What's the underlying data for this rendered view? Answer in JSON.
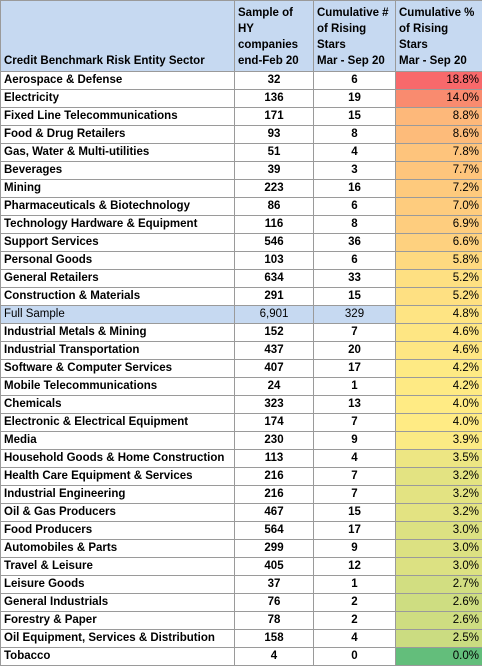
{
  "header": {
    "sector": "Credit Benchmark Risk Entity Sector",
    "sample_lines": [
      "Sample of HY",
      "companies",
      "end-Feb 20"
    ],
    "cum_num_lines": [
      "Cumulative #",
      "of Rising Stars",
      "Mar - Sep 20"
    ],
    "cum_pct_lines": [
      "Cumulative %",
      "of Rising Stars",
      "Mar - Sep 20"
    ]
  },
  "rows": [
    {
      "sector": "Aerospace & Defense",
      "sample": "32",
      "rising": "6",
      "pct": "18.8%",
      "color": "#f8696b"
    },
    {
      "sector": "Electricity",
      "sample": "136",
      "rising": "19",
      "pct": "14.0%",
      "color": "#f98b6f"
    },
    {
      "sector": "Fixed Line Telecommunications",
      "sample": "171",
      "rising": "15",
      "pct": "8.8%",
      "color": "#fdb87a"
    },
    {
      "sector": "Food & Drug Retailers",
      "sample": "93",
      "rising": "8",
      "pct": "8.6%",
      "color": "#fdbb7a"
    },
    {
      "sector": "Gas, Water & Multi-utilities",
      "sample": "51",
      "rising": "4",
      "pct": "7.8%",
      "color": "#fec47c"
    },
    {
      "sector": "Beverages",
      "sample": "39",
      "rising": "3",
      "pct": "7.7%",
      "color": "#fec57c"
    },
    {
      "sector": "Mining",
      "sample": "223",
      "rising": "16",
      "pct": "7.2%",
      "color": "#feca7d"
    },
    {
      "sector": "Pharmaceuticals & Biotechnology",
      "sample": "86",
      "rising": "6",
      "pct": "7.0%",
      "color": "#fecc7e"
    },
    {
      "sector": "Technology Hardware & Equipment",
      "sample": "116",
      "rising": "8",
      "pct": "6.9%",
      "color": "#fecd7e"
    },
    {
      "sector": "Support Services",
      "sample": "546",
      "rising": "36",
      "pct": "6.6%",
      "color": "#fed17f"
    },
    {
      "sector": "Personal Goods",
      "sample": "103",
      "rising": "6",
      "pct": "5.8%",
      "color": "#fed980"
    },
    {
      "sector": "General Retailers",
      "sample": "634",
      "rising": "33",
      "pct": "5.2%",
      "color": "#fee082"
    },
    {
      "sector": "Construction & Materials",
      "sample": "291",
      "rising": "15",
      "pct": "5.2%",
      "color": "#fee082"
    },
    {
      "sector": "Full Sample",
      "sample": "6,901",
      "rising": "329",
      "pct": "4.8%",
      "color": "#fee483",
      "full": true
    },
    {
      "sector": "Industrial Metals & Mining",
      "sample": "152",
      "rising": "7",
      "pct": "4.6%",
      "color": "#fee683"
    },
    {
      "sector": "Industrial Transportation",
      "sample": "437",
      "rising": "20",
      "pct": "4.6%",
      "color": "#fee683"
    },
    {
      "sector": "Software & Computer Services",
      "sample": "407",
      "rising": "17",
      "pct": "4.2%",
      "color": "#feea84"
    },
    {
      "sector": "Mobile Telecommunications",
      "sample": "24",
      "rising": "1",
      "pct": "4.2%",
      "color": "#feea84"
    },
    {
      "sector": "Chemicals",
      "sample": "323",
      "rising": "13",
      "pct": "4.0%",
      "color": "#ffeb84"
    },
    {
      "sector": "Electronic & Electrical Equipment",
      "sample": "174",
      "rising": "7",
      "pct": "4.0%",
      "color": "#ffeb84"
    },
    {
      "sector": "Media",
      "sample": "230",
      "rising": "9",
      "pct": "3.9%",
      "color": "#fbea84"
    },
    {
      "sector": "Household Goods & Home Construction",
      "sample": "113",
      "rising": "4",
      "pct": "3.5%",
      "color": "#ede683"
    },
    {
      "sector": "Health Care Equipment & Services",
      "sample": "216",
      "rising": "7",
      "pct": "3.2%",
      "color": "#e3e382"
    },
    {
      "sector": "Industrial Engineering",
      "sample": "216",
      "rising": "7",
      "pct": "3.2%",
      "color": "#e3e382"
    },
    {
      "sector": "Oil & Gas Producers",
      "sample": "467",
      "rising": "15",
      "pct": "3.2%",
      "color": "#e3e382"
    },
    {
      "sector": "Food Producers",
      "sample": "564",
      "rising": "17",
      "pct": "3.0%",
      "color": "#dce182"
    },
    {
      "sector": "Automobiles & Parts",
      "sample": "299",
      "rising": "9",
      "pct": "3.0%",
      "color": "#dce182"
    },
    {
      "sector": "Travel & Leisure",
      "sample": "405",
      "rising": "12",
      "pct": "3.0%",
      "color": "#dce182"
    },
    {
      "sector": "Leisure Goods",
      "sample": "37",
      "rising": "1",
      "pct": "2.7%",
      "color": "#d2de81"
    },
    {
      "sector": "General Industrials",
      "sample": "76",
      "rising": "2",
      "pct": "2.6%",
      "color": "#cedd81"
    },
    {
      "sector": "Forestry & Paper",
      "sample": "78",
      "rising": "2",
      "pct": "2.6%",
      "color": "#cedd81"
    },
    {
      "sector": "Oil Equipment, Services & Distribution",
      "sample": "158",
      "rising": "4",
      "pct": "2.5%",
      "color": "#cbdc81"
    },
    {
      "sector": "Tobacco",
      "sample": "4",
      "rising": "0",
      "pct": "0.0%",
      "color": "#63be7b"
    }
  ]
}
